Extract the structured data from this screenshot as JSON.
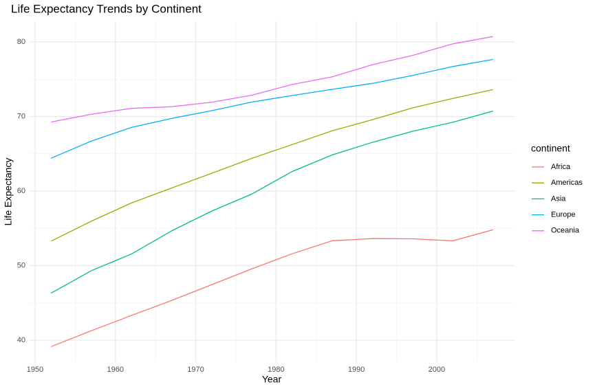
{
  "chart_data": {
    "type": "line",
    "title": "Life Expectancy Trends by Continent",
    "x_label": "Year",
    "y_label": "Life Expectancy",
    "legend_title": "continent",
    "legend_position": "right",
    "x": [
      1952,
      1957,
      1962,
      1967,
      1972,
      1977,
      1982,
      1987,
      1992,
      1997,
      2002,
      2007
    ],
    "series": [
      {
        "name": "Africa",
        "color": "#F8766D",
        "values": [
          39.14,
          41.27,
          43.32,
          45.33,
          47.45,
          49.58,
          51.59,
          53.34,
          53.63,
          53.6,
          53.33,
          54.81
        ]
      },
      {
        "name": "Americas",
        "color": "#A3A500",
        "values": [
          53.28,
          55.96,
          58.4,
          60.41,
          62.39,
          64.39,
          66.23,
          68.09,
          69.57,
          71.15,
          72.42,
          73.61
        ]
      },
      {
        "name": "Asia",
        "color": "#00BF7D",
        "values": [
          46.31,
          49.32,
          51.56,
          54.66,
          57.32,
          59.61,
          62.62,
          64.85,
          66.54,
          68.02,
          69.23,
          70.73
        ]
      },
      {
        "name": "Europe",
        "color": "#00B0F6",
        "values": [
          64.41,
          66.7,
          68.54,
          69.74,
          70.78,
          71.94,
          72.81,
          73.64,
          74.44,
          75.51,
          76.7,
          77.65
        ]
      },
      {
        "name": "Oceania",
        "color": "#E76BF3",
        "values": [
          69.26,
          70.3,
          71.09,
          71.31,
          71.91,
          72.86,
          74.29,
          75.32,
          76.95,
          78.19,
          79.74,
          80.72
        ]
      }
    ],
    "xlim": [
      1949.25,
      2009.75
    ],
    "ylim": [
      37.06,
      82.8
    ],
    "xticks": [
      1950,
      1960,
      1970,
      1980,
      1990,
      2000
    ],
    "yticks": [
      40,
      50,
      60,
      70,
      80
    ],
    "x_minor_ticks": [
      1955,
      1965,
      1975,
      1985,
      1995,
      2005
    ],
    "y_minor_ticks": [
      45,
      55,
      65,
      75
    ],
    "grid": true
  }
}
